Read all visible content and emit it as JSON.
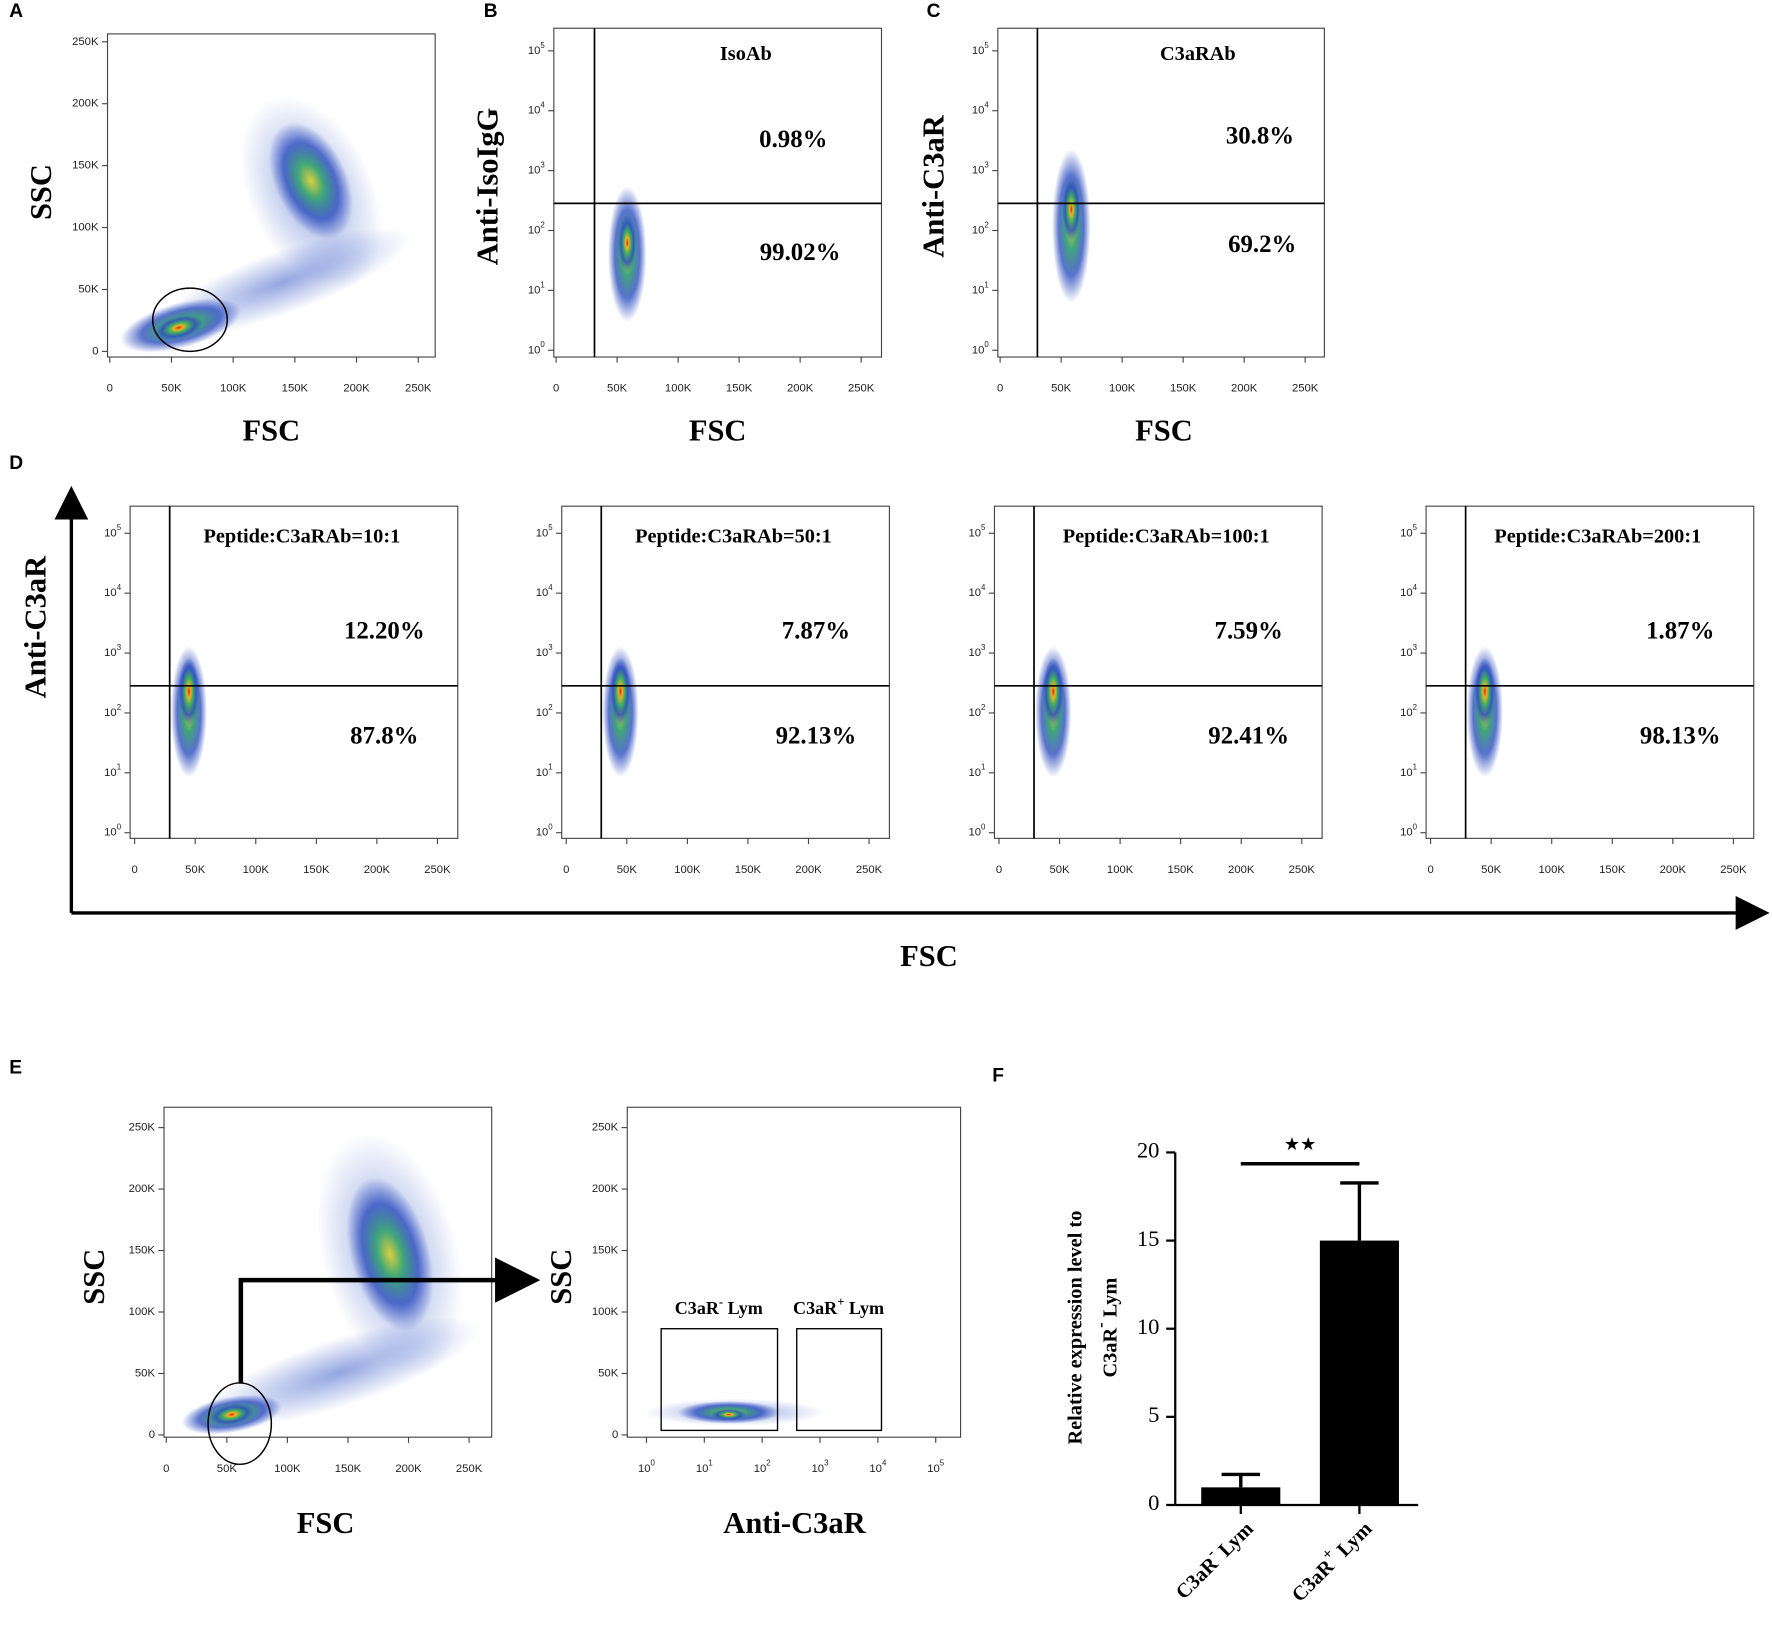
{
  "plots": [
    {
      "label": "A",
      "xlabel": "FSC",
      "ylabel": "SSC",
      "xticks": [
        "0",
        "50K",
        "100K",
        "150K",
        "200K",
        "250K"
      ],
      "yticks": [
        "0",
        "50K",
        "100K",
        "150K",
        "200K",
        "250K"
      ]
    },
    {
      "label": "B",
      "xlabel": "FSC",
      "ylabel": "Anti-IsoIgG",
      "title": "IsoAb",
      "upper": "0.98%",
      "lower": "99.02%",
      "xticks": [
        "0",
        "50K",
        "100K",
        "150K",
        "200K",
        "250K"
      ],
      "yticks": [
        {
          "base": "10",
          "exp": "0"
        },
        {
          "base": "10",
          "exp": "1"
        },
        {
          "base": "10",
          "exp": "2"
        },
        {
          "base": "10",
          "exp": "3"
        },
        {
          "base": "10",
          "exp": "4"
        },
        {
          "base": "10",
          "exp": "5"
        }
      ]
    },
    {
      "label": "C",
      "xlabel": "FSC",
      "ylabel": "Anti-C3aR",
      "title": "C3aRAb",
      "upper": "30.8%",
      "lower": "69.2%",
      "xticks": [
        "0",
        "50K",
        "100K",
        "150K",
        "200K",
        "250K"
      ],
      "yticks": [
        {
          "base": "10",
          "exp": "0"
        },
        {
          "base": "10",
          "exp": "1"
        },
        {
          "base": "10",
          "exp": "2"
        },
        {
          "base": "10",
          "exp": "3"
        },
        {
          "base": "10",
          "exp": "4"
        },
        {
          "base": "10",
          "exp": "5"
        }
      ]
    },
    {
      "title": "Peptide:C3aRAb=10:1",
      "upper": "12.20%",
      "lower": "87.8%",
      "xticks": [
        "0",
        "50K",
        "100K",
        "150K",
        "200K",
        "250K"
      ],
      "yticks": [
        {
          "base": "10",
          "exp": "0"
        },
        {
          "base": "10",
          "exp": "1"
        },
        {
          "base": "10",
          "exp": "2"
        },
        {
          "base": "10",
          "exp": "3"
        },
        {
          "base": "10",
          "exp": "4"
        },
        {
          "base": "10",
          "exp": "5"
        }
      ]
    },
    {
      "title": "Peptide:C3aRAb=50:1",
      "upper": "7.87%",
      "lower": "92.13%",
      "xticks": [
        "0",
        "50K",
        "100K",
        "150K",
        "200K",
        "250K"
      ],
      "yticks": [
        {
          "base": "10",
          "exp": "0"
        },
        {
          "base": "10",
          "exp": "1"
        },
        {
          "base": "10",
          "exp": "2"
        },
        {
          "base": "10",
          "exp": "3"
        },
        {
          "base": "10",
          "exp": "4"
        },
        {
          "base": "10",
          "exp": "5"
        }
      ]
    },
    {
      "title": "Peptide:C3aRAb=100:1",
      "upper": "7.59%",
      "lower": "92.41%",
      "xticks": [
        "0",
        "50K",
        "100K",
        "150K",
        "200K",
        "250K"
      ],
      "yticks": [
        {
          "base": "10",
          "exp": "0"
        },
        {
          "base": "10",
          "exp": "1"
        },
        {
          "base": "10",
          "exp": "2"
        },
        {
          "base": "10",
          "exp": "3"
        },
        {
          "base": "10",
          "exp": "4"
        },
        {
          "base": "10",
          "exp": "5"
        }
      ]
    },
    {
      "title": "Peptide:C3aRAb=200:1",
      "upper": "1.87%",
      "lower": "98.13%",
      "xticks": [
        "0",
        "50K",
        "100K",
        "150K",
        "200K",
        "250K"
      ],
      "yticks": [
        {
          "base": "10",
          "exp": "0"
        },
        {
          "base": "10",
          "exp": "1"
        },
        {
          "base": "10",
          "exp": "2"
        },
        {
          "base": "10",
          "exp": "3"
        },
        {
          "base": "10",
          "exp": "4"
        },
        {
          "base": "10",
          "exp": "5"
        }
      ]
    },
    {
      "label": "E",
      "xlabel": "FSC",
      "ylabel": "SSC",
      "xticks": [
        "0",
        "50K",
        "100K",
        "150K",
        "200K",
        "250K"
      ],
      "yticks": [
        "0",
        "50K",
        "100K",
        "150K",
        "200K",
        "250K"
      ]
    },
    {
      "xlabel": "Anti-C3aR",
      "ylabel": "SSC",
      "xticks": [
        {
          "base": "10",
          "exp": "0"
        },
        {
          "base": "10",
          "exp": "1"
        },
        {
          "base": "10",
          "exp": "2"
        },
        {
          "base": "10",
          "exp": "3"
        },
        {
          "base": "10",
          "exp": "4"
        },
        {
          "base": "10",
          "exp": "5"
        }
      ],
      "yticks": [
        "0",
        "50K",
        "100K",
        "150K",
        "200K",
        "250K"
      ],
      "gates": [
        {
          "base": "C3aR",
          "sup": "-",
          "rest": " Lym"
        },
        {
          "base": "C3aR",
          "sup": "+",
          "rest": " Lym"
        }
      ]
    }
  ],
  "panel_d": {
    "label": "D",
    "xlabel": "FSC",
    "ylabel": "Anti-C3aR"
  },
  "chart_data": {
    "type": "bar",
    "panel_label": "F",
    "ylabel": [
      "Relative expression level to",
      {
        "base": "C3aR",
        "sup": "-",
        "rest": " Lym"
      }
    ],
    "categories": [
      {
        "base": "C3aR",
        "sup": "-",
        "rest": " Lym"
      },
      {
        "base": "C3aR",
        "sup": "+",
        "rest": " Lym"
      }
    ],
    "values": [
      1,
      15
    ],
    "errors": [
      0.73,
      3.27
    ],
    "color": "#000000",
    "significance": "★★",
    "ylim": [
      0,
      20
    ],
    "yticks": [
      0,
      5,
      10,
      15,
      20
    ]
  }
}
